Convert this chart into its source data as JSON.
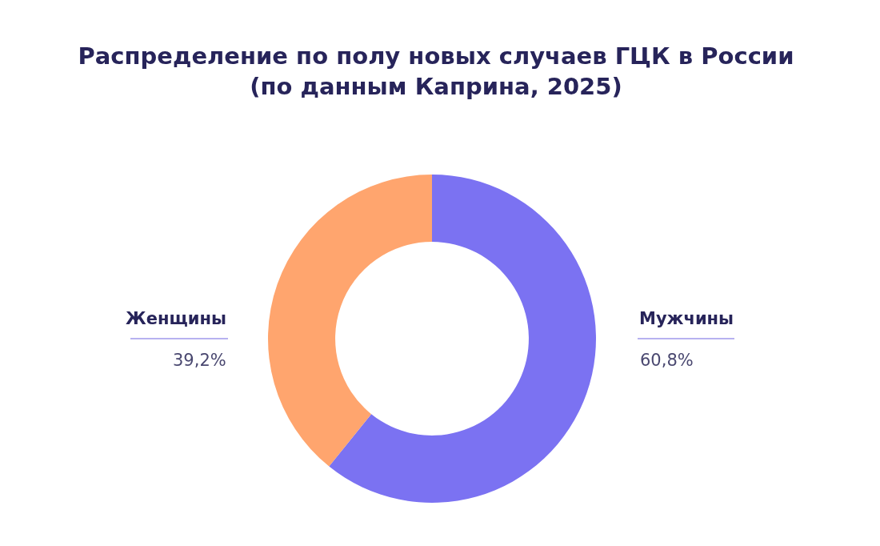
{
  "chart_data": {
    "type": "donut",
    "title": "Распределение по полу новых случаев ГЦК в России\n(по данным Каприна, 2025)",
    "categories": [
      "Мужчины",
      "Женщины"
    ],
    "values": [
      60.8,
      39.2
    ],
    "value_labels": [
      "60,8%",
      "39,2%"
    ],
    "colors": [
      "#7b72f2",
      "#ffa56e"
    ],
    "legend": false
  }
}
